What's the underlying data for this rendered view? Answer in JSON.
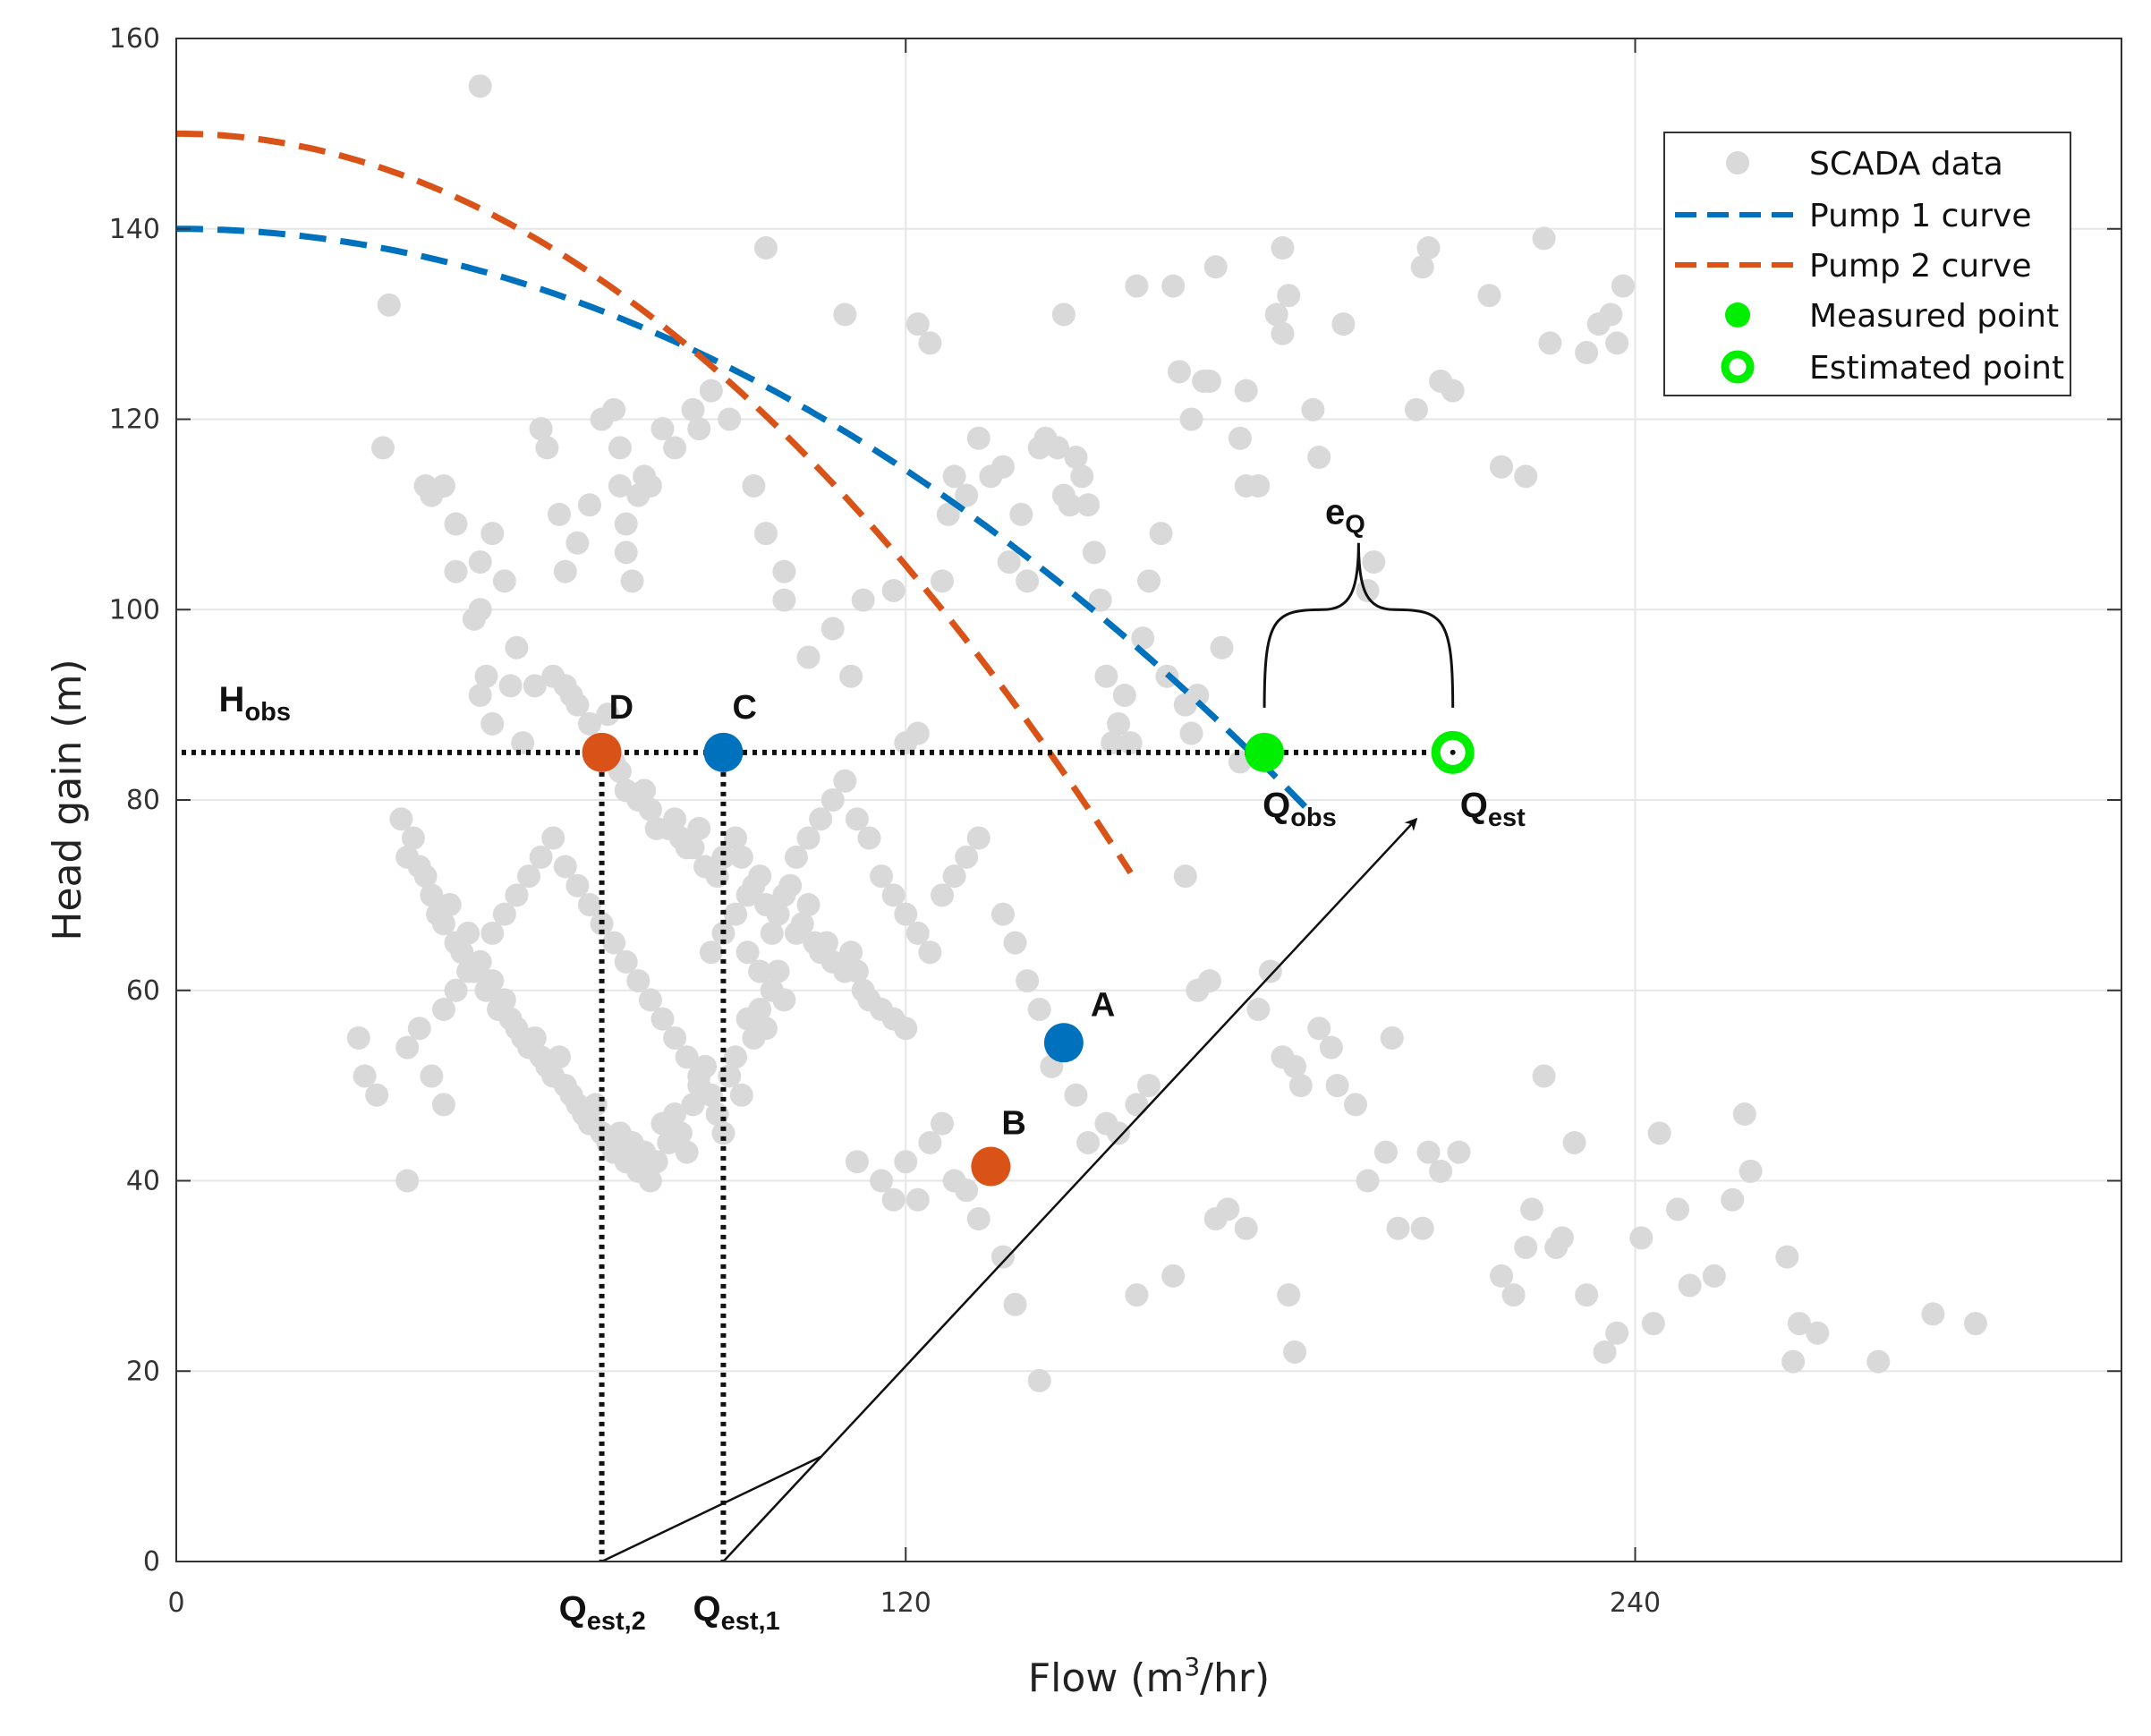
{
  "chart_data": {
    "type": "scatter",
    "xlabel": "Flow (m",
    "xlabel_sup": "3",
    "xlabel_tail": "/hr)",
    "ylabel": "Head gain (m)",
    "xlim": [
      0,
      320
    ],
    "ylim": [
      0,
      160
    ],
    "xticks": [
      0,
      120,
      240
    ],
    "yticks": [
      0,
      20,
      40,
      60,
      80,
      100,
      120,
      140,
      160
    ],
    "grid": true,
    "legend": {
      "placement": "top-right",
      "entries": [
        {
          "key": "scada",
          "label": "SCADA data"
        },
        {
          "key": "pump1",
          "label": "Pump 1 curve"
        },
        {
          "key": "pump2",
          "label": "Pump 2 curve"
        },
        {
          "key": "measured",
          "label": "Measured point"
        },
        {
          "key": "estimated",
          "label": "Estimated point"
        }
      ]
    },
    "colors": {
      "scada": "#d9d9d9",
      "pump1": "#0072bd",
      "pump2": "#d95319",
      "measured": "#00ee00",
      "grid": "#e6e6e6",
      "axis": "#333333"
    },
    "pump_curves": [
      {
        "name": "Pump 1 curve",
        "shutoff_head": 140,
        "coefficient": 0.00176,
        "exponent": 2,
        "q_max": 187
      },
      {
        "name": "Pump 2 curve",
        "shutoff_head": 150,
        "coefficient": 0.00315,
        "exponent": 2,
        "q_max": 157
      }
    ],
    "h_obs": 85,
    "points": [
      {
        "label": "A",
        "x": 146,
        "y": 54.5,
        "series": "Pump 1 curve"
      },
      {
        "label": "B",
        "x": 134,
        "y": 41.5,
        "series": "Pump 2 curve"
      },
      {
        "label": "C",
        "x": 90,
        "y": 85,
        "series": "Pump 1 curve"
      },
      {
        "label": "D",
        "x": 70,
        "y": 85,
        "series": "Pump 2 curve"
      }
    ],
    "measured_point": {
      "x": 179,
      "y": 85
    },
    "estimated_point": {
      "x": 210,
      "y": 85
    },
    "annotations": {
      "h_obs": {
        "main": "H",
        "sub": "obs"
      },
      "q_obs": {
        "main": "Q",
        "sub": "obs"
      },
      "q_est": {
        "main": "Q",
        "sub": "est"
      },
      "e_q": {
        "main": "e",
        "sub": "Q"
      },
      "q_est2": {
        "main": "Q",
        "sub": "est,2"
      },
      "q_est1": {
        "main": "Q",
        "sub": "est,1"
      }
    },
    "arrow": {
      "from": [
        90,
        0
      ],
      "to": [
        204,
        78
      ]
    },
    "arrow_branch": {
      "from": [
        70,
        0
      ],
      "to": [
        106,
        11
      ]
    },
    "scada_points": [
      [
        50,
        155
      ],
      [
        97,
        138
      ],
      [
        110,
        131
      ],
      [
        122,
        130
      ],
      [
        124,
        128
      ],
      [
        146,
        131
      ],
      [
        158,
        134
      ],
      [
        164,
        134
      ],
      [
        165,
        125
      ],
      [
        167,
        120
      ],
      [
        169,
        124
      ],
      [
        170,
        124
      ],
      [
        171,
        136
      ],
      [
        175,
        118
      ],
      [
        176,
        113
      ],
      [
        178,
        113
      ],
      [
        176,
        123
      ],
      [
        181,
        131
      ],
      [
        182,
        129
      ],
      [
        182,
        138
      ],
      [
        183,
        133
      ],
      [
        187,
        121
      ],
      [
        188,
        116
      ],
      [
        192,
        130
      ],
      [
        196,
        102
      ],
      [
        197,
        105
      ],
      [
        204,
        121
      ],
      [
        205,
        136
      ],
      [
        206,
        138
      ],
      [
        208,
        124
      ],
      [
        210,
        123
      ],
      [
        216,
        133
      ],
      [
        218,
        115
      ],
      [
        222,
        114
      ],
      [
        225,
        139
      ],
      [
        226,
        128
      ],
      [
        232,
        127
      ],
      [
        234,
        130
      ],
      [
        236,
        131
      ],
      [
        237,
        128
      ],
      [
        238,
        134
      ],
      [
        35,
        132
      ],
      [
        34,
        117
      ],
      [
        41,
        113
      ],
      [
        42,
        112
      ],
      [
        44,
        113
      ],
      [
        46,
        109
      ],
      [
        46,
        104
      ],
      [
        49,
        99
      ],
      [
        50,
        105
      ],
      [
        52,
        108
      ],
      [
        54,
        103
      ],
      [
        56,
        96
      ],
      [
        60,
        119
      ],
      [
        61,
        117
      ],
      [
        63,
        110
      ],
      [
        64,
        104
      ],
      [
        66,
        107
      ],
      [
        68,
        111
      ],
      [
        70,
        120
      ],
      [
        72,
        121
      ],
      [
        73,
        117
      ],
      [
        73,
        113
      ],
      [
        74,
        106
      ],
      [
        74,
        109
      ],
      [
        75,
        103
      ],
      [
        76,
        112
      ],
      [
        77,
        114
      ],
      [
        78,
        113
      ],
      [
        80,
        119
      ],
      [
        82,
        117
      ],
      [
        85,
        121
      ],
      [
        86,
        119
      ],
      [
        88,
        123
      ],
      [
        91,
        120
      ],
      [
        95,
        113
      ],
      [
        97,
        108
      ],
      [
        100,
        104
      ],
      [
        100,
        101
      ],
      [
        104,
        95
      ],
      [
        108,
        98
      ],
      [
        111,
        93
      ],
      [
        113,
        101
      ],
      [
        118,
        102
      ],
      [
        120,
        86
      ],
      [
        122,
        87
      ],
      [
        126,
        103
      ],
      [
        127,
        110
      ],
      [
        128,
        114
      ],
      [
        130,
        112
      ],
      [
        132,
        118
      ],
      [
        134,
        114
      ],
      [
        136,
        115
      ],
      [
        137,
        105
      ],
      [
        139,
        110
      ],
      [
        140,
        103
      ],
      [
        142,
        117
      ],
      [
        143,
        118
      ],
      [
        145,
        117
      ],
      [
        146,
        112
      ],
      [
        147,
        111
      ],
      [
        148,
        116
      ],
      [
        149,
        114
      ],
      [
        150,
        111
      ],
      [
        151,
        106
      ],
      [
        152,
        101
      ],
      [
        153,
        93
      ],
      [
        154,
        86
      ],
      [
        155,
        88
      ],
      [
        156,
        91
      ],
      [
        157,
        86
      ],
      [
        159,
        97
      ],
      [
        160,
        103
      ],
      [
        162,
        108
      ],
      [
        163,
        93
      ],
      [
        166,
        90
      ],
      [
        167,
        87
      ],
      [
        168,
        91
      ],
      [
        172,
        96
      ],
      [
        175,
        84
      ],
      [
        50,
        100
      ],
      [
        51,
        93
      ],
      [
        50,
        91
      ],
      [
        52,
        88
      ],
      [
        55,
        92
      ],
      [
        57,
        86
      ],
      [
        59,
        92
      ],
      [
        62,
        93
      ],
      [
        64,
        92
      ],
      [
        65,
        91
      ],
      [
        66,
        90
      ],
      [
        68,
        88
      ],
      [
        70,
        85
      ],
      [
        71,
        89
      ],
      [
        72,
        84
      ],
      [
        73,
        83
      ],
      [
        74,
        81
      ],
      [
        76,
        80
      ],
      [
        77,
        81
      ],
      [
        78,
        79
      ],
      [
        79,
        77
      ],
      [
        81,
        77
      ],
      [
        82,
        78
      ],
      [
        83,
        76
      ],
      [
        84,
        75
      ],
      [
        85,
        75
      ],
      [
        86,
        77
      ],
      [
        87,
        73
      ],
      [
        89,
        72
      ],
      [
        90,
        74
      ],
      [
        92,
        76
      ],
      [
        93,
        74
      ],
      [
        94,
        70
      ],
      [
        95,
        71
      ],
      [
        96,
        72
      ],
      [
        97,
        69
      ],
      [
        99,
        68
      ],
      [
        100,
        70
      ],
      [
        101,
        71
      ],
      [
        102,
        66
      ],
      [
        103,
        67
      ],
      [
        104,
        69
      ],
      [
        105,
        65
      ],
      [
        106,
        64
      ],
      [
        107,
        65
      ],
      [
        108,
        63
      ],
      [
        110,
        62
      ],
      [
        111,
        64
      ],
      [
        112,
        62
      ],
      [
        113,
        60
      ],
      [
        114,
        59
      ],
      [
        116,
        58
      ],
      [
        118,
        57
      ],
      [
        120,
        56
      ],
      [
        37,
        78
      ],
      [
        38,
        74
      ],
      [
        39,
        76
      ],
      [
        40,
        73
      ],
      [
        41,
        72
      ],
      [
        42,
        70
      ],
      [
        43,
        68
      ],
      [
        44,
        67
      ],
      [
        45,
        69
      ],
      [
        46,
        65
      ],
      [
        47,
        64
      ],
      [
        48,
        66
      ],
      [
        49,
        62
      ],
      [
        50,
        63
      ],
      [
        51,
        60
      ],
      [
        52,
        61
      ],
      [
        53,
        58
      ],
      [
        54,
        59
      ],
      [
        55,
        57
      ],
      [
        56,
        56
      ],
      [
        57,
        55
      ],
      [
        58,
        54
      ],
      [
        59,
        55
      ],
      [
        60,
        53
      ],
      [
        61,
        52
      ],
      [
        62,
        51
      ],
      [
        63,
        53
      ],
      [
        64,
        50
      ],
      [
        65,
        49
      ],
      [
        66,
        48
      ],
      [
        67,
        47
      ],
      [
        68,
        46
      ],
      [
        69,
        48
      ],
      [
        70,
        45
      ],
      [
        71,
        44
      ],
      [
        72,
        43
      ],
      [
        73,
        45
      ],
      [
        74,
        42
      ],
      [
        75,
        44
      ],
      [
        76,
        41
      ],
      [
        77,
        43
      ],
      [
        78,
        40
      ],
      [
        79,
        42
      ],
      [
        80,
        46
      ],
      [
        81,
        44
      ],
      [
        82,
        47
      ],
      [
        83,
        45
      ],
      [
        84,
        43
      ],
      [
        85,
        48
      ],
      [
        86,
        50
      ],
      [
        87,
        52
      ],
      [
        88,
        49
      ],
      [
        89,
        47
      ],
      [
        90,
        45
      ],
      [
        91,
        51
      ],
      [
        92,
        53
      ],
      [
        93,
        49
      ],
      [
        94,
        57
      ],
      [
        95,
        55
      ],
      [
        96,
        58
      ],
      [
        97,
        56
      ],
      [
        98,
        60
      ],
      [
        99,
        62
      ],
      [
        100,
        59
      ],
      [
        30,
        55
      ],
      [
        31,
        51
      ],
      [
        33,
        49
      ],
      [
        38,
        54
      ],
      [
        40,
        56
      ],
      [
        42,
        51
      ],
      [
        44,
        48
      ],
      [
        38,
        40
      ],
      [
        44,
        58
      ],
      [
        46,
        60
      ],
      [
        48,
        62
      ],
      [
        52,
        66
      ],
      [
        54,
        68
      ],
      [
        56,
        70
      ],
      [
        58,
        72
      ],
      [
        60,
        74
      ],
      [
        62,
        76
      ],
      [
        64,
        73
      ],
      [
        66,
        71
      ],
      [
        68,
        69
      ],
      [
        70,
        67
      ],
      [
        72,
        65
      ],
      [
        74,
        63
      ],
      [
        76,
        61
      ],
      [
        78,
        59
      ],
      [
        80,
        57
      ],
      [
        82,
        55
      ],
      [
        84,
        53
      ],
      [
        86,
        51
      ],
      [
        88,
        64
      ],
      [
        90,
        66
      ],
      [
        92,
        68
      ],
      [
        94,
        64
      ],
      [
        96,
        62
      ],
      [
        98,
        66
      ],
      [
        102,
        74
      ],
      [
        104,
        76
      ],
      [
        106,
        78
      ],
      [
        108,
        80
      ],
      [
        110,
        82
      ],
      [
        112,
        78
      ],
      [
        114,
        76
      ],
      [
        116,
        72
      ],
      [
        118,
        70
      ],
      [
        120,
        68
      ],
      [
        122,
        66
      ],
      [
        124,
        64
      ],
      [
        126,
        70
      ],
      [
        128,
        72
      ],
      [
        130,
        74
      ],
      [
        132,
        76
      ],
      [
        136,
        68
      ],
      [
        138,
        65
      ],
      [
        140,
        61
      ],
      [
        142,
        58
      ],
      [
        144,
        52
      ],
      [
        148,
        49
      ],
      [
        150,
        44
      ],
      [
        153,
        46
      ],
      [
        155,
        45
      ],
      [
        158,
        48
      ],
      [
        160,
        50
      ],
      [
        112,
        42
      ],
      [
        116,
        40
      ],
      [
        118,
        38
      ],
      [
        120,
        42
      ],
      [
        122,
        38
      ],
      [
        124,
        44
      ],
      [
        126,
        46
      ],
      [
        128,
        40
      ],
      [
        130,
        39
      ],
      [
        132,
        36
      ],
      [
        136,
        32
      ],
      [
        138,
        27
      ],
      [
        142,
        19
      ],
      [
        158,
        28
      ],
      [
        164,
        30
      ],
      [
        166,
        72
      ],
      [
        168,
        60
      ],
      [
        170,
        61
      ],
      [
        171,
        36
      ],
      [
        173,
        37
      ],
      [
        176,
        35
      ],
      [
        178,
        58
      ],
      [
        180,
        62
      ],
      [
        182,
        53
      ],
      [
        184,
        52
      ],
      [
        185,
        50
      ],
      [
        183,
        28
      ],
      [
        184,
        22
      ],
      [
        188,
        56
      ],
      [
        190,
        54
      ],
      [
        191,
        50
      ],
      [
        194,
        48
      ],
      [
        196,
        40
      ],
      [
        200,
        55
      ],
      [
        199,
        43
      ],
      [
        201,
        35
      ],
      [
        205,
        35
      ],
      [
        206,
        43
      ],
      [
        208,
        41
      ],
      [
        211,
        43
      ],
      [
        218,
        30
      ],
      [
        220,
        28
      ],
      [
        222,
        33
      ],
      [
        223,
        37
      ],
      [
        225,
        51
      ],
      [
        227,
        33
      ],
      [
        228,
        34
      ],
      [
        230,
        44
      ],
      [
        232,
        28
      ],
      [
        235,
        22
      ],
      [
        237,
        24
      ],
      [
        241,
        34
      ],
      [
        243,
        25
      ],
      [
        244,
        45
      ],
      [
        247,
        37
      ],
      [
        249,
        29
      ],
      [
        253,
        30
      ],
      [
        256,
        38
      ],
      [
        258,
        47
      ],
      [
        259,
        41
      ],
      [
        265,
        32
      ],
      [
        267,
        25
      ],
      [
        270,
        24
      ],
      [
        280,
        21
      ],
      [
        289,
        26
      ],
      [
        296,
        25
      ],
      [
        266,
        21
      ]
    ]
  }
}
